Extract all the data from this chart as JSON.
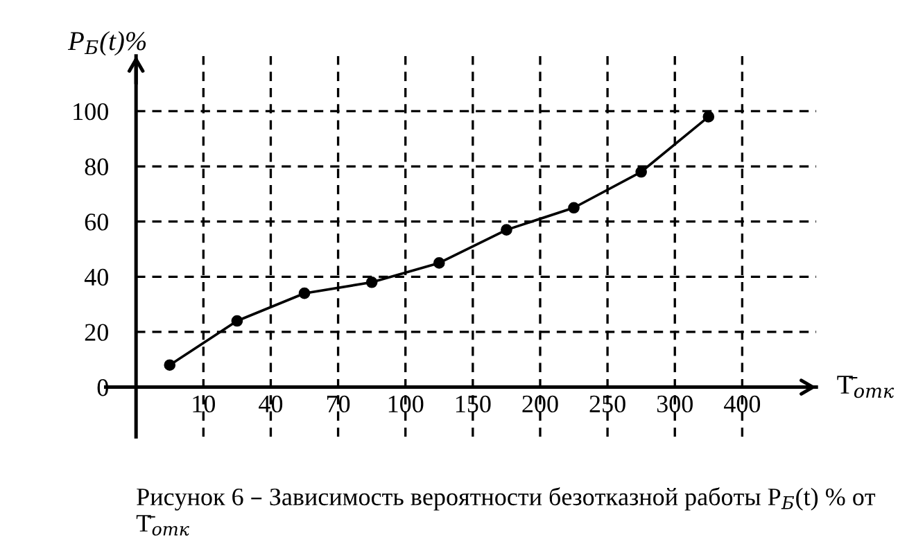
{
  "chart_data": {
    "type": "line",
    "ylabel": "P$_{Б}$(t)%",
    "xlabel": "T̄$_{отк}$",
    "annotations": [
      "Рисунок 6 – Зависимость вероятности безотказной работы P$_{Б}$(t) % от T̄$_{отк}$"
    ],
    "categories": [
      null,
      "10",
      null,
      "40",
      null,
      "70",
      null,
      "100",
      null,
      "150",
      null,
      "200",
      null,
      "250",
      null,
      "300",
      null,
      "400",
      null
    ],
    "series": [
      {
        "color": "#000000",
        "values": [
          8,
          null,
          24,
          null,
          34,
          null,
          38,
          null,
          45,
          null,
          57,
          null,
          65,
          null,
          78,
          null,
          98,
          null,
          null
        ]
      }
    ],
    "ylim": [
      -18,
      120
    ],
    "yticks": [
      0,
      20,
      40,
      60,
      80,
      100
    ],
    "grid": true,
    "marker": "circle",
    "line_style": "solid"
  }
}
